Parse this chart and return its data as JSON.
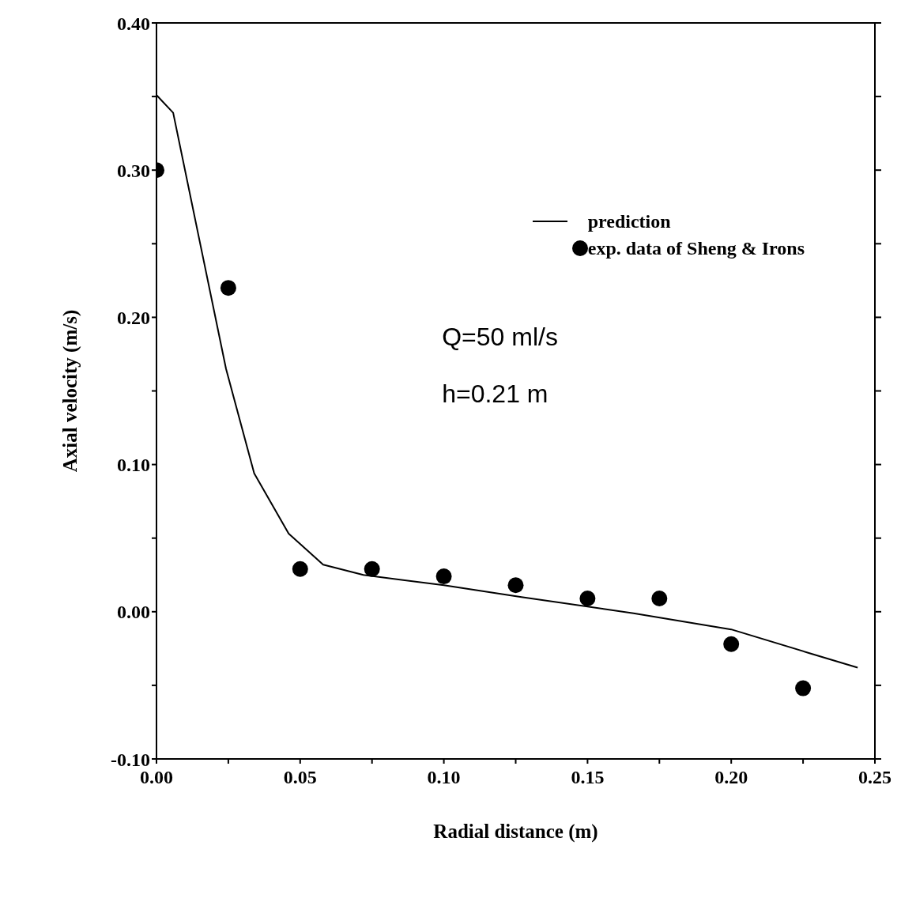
{
  "chart_data": {
    "type": "line",
    "xlabel": "Radial distance (m)",
    "ylabel": "Axial velocity (m/s)",
    "xlim": [
      0,
      0.25
    ],
    "ylim": [
      -0.1,
      0.4
    ],
    "xticks": [
      "0.00",
      {
        "value": 0.025,
        "label": null
      },
      {
        "value": 0.05,
        "label": "0.05"
      },
      {
        "value": 0.075,
        "label": null
      },
      {
        "value": 0.1,
        "label": "0.10"
      },
      {
        "value": 0.125,
        "label": null
      },
      {
        "value": 0.15,
        "label": "0.15"
      },
      {
        "value": 0.175,
        "label": null
      },
      {
        "value": 0.2,
        "label": "0.20"
      },
      {
        "value": 0.225,
        "label": null
      },
      {
        "value": 0.25,
        "label": "0.25"
      }
    ],
    "yticks": [
      {
        "value": -0.1,
        "label": "-0.10"
      },
      {
        "value": -0.05,
        "label": null
      },
      {
        "value": 0,
        "label": "0.00"
      },
      {
        "value": 0.05,
        "label": null
      },
      {
        "value": 0.1,
        "label": "0.10"
      },
      {
        "value": 0.15,
        "label": null
      },
      {
        "value": 0.2,
        "label": "0.20"
      },
      {
        "value": 0.25,
        "label": null
      },
      {
        "value": 0.3,
        "label": "0.30"
      },
      {
        "value": 0.35,
        "label": null
      },
      {
        "value": 0.4,
        "label": "0.40"
      }
    ],
    "legend": "top right",
    "grid": false,
    "series": [
      {
        "name": "prediction",
        "color": "#000000",
        "marker": "none",
        "line_style": "solid",
        "x": [
          0,
          0.0058,
          0.0242,
          0.034,
          0.046,
          0.058,
          0.072,
          0.1,
          0.127,
          0.166,
          0.2,
          0.227,
          0.244
        ],
        "values": [
          0.351,
          0.339,
          0.165,
          0.094,
          0.053,
          0.032,
          0.025,
          0.018,
          0.01,
          -0.001,
          -0.012,
          -0.028,
          -0.038
        ]
      },
      {
        "name": "exp. data of Sheng & Irons",
        "type": "scatter",
        "color": "#000000",
        "marker": "circle",
        "x": [
          0,
          0.025,
          0.05,
          0.075,
          0.1,
          0.125,
          0.15,
          0.175,
          0.2,
          0.225
        ],
        "values": [
          0.3,
          0.22,
          0.029,
          0.029,
          0.024,
          0.018,
          0.009,
          0.009,
          -0.022,
          -0.052
        ]
      }
    ],
    "annotations": [
      "Q=50 ml/s",
      "h=0.21 m"
    ]
  }
}
